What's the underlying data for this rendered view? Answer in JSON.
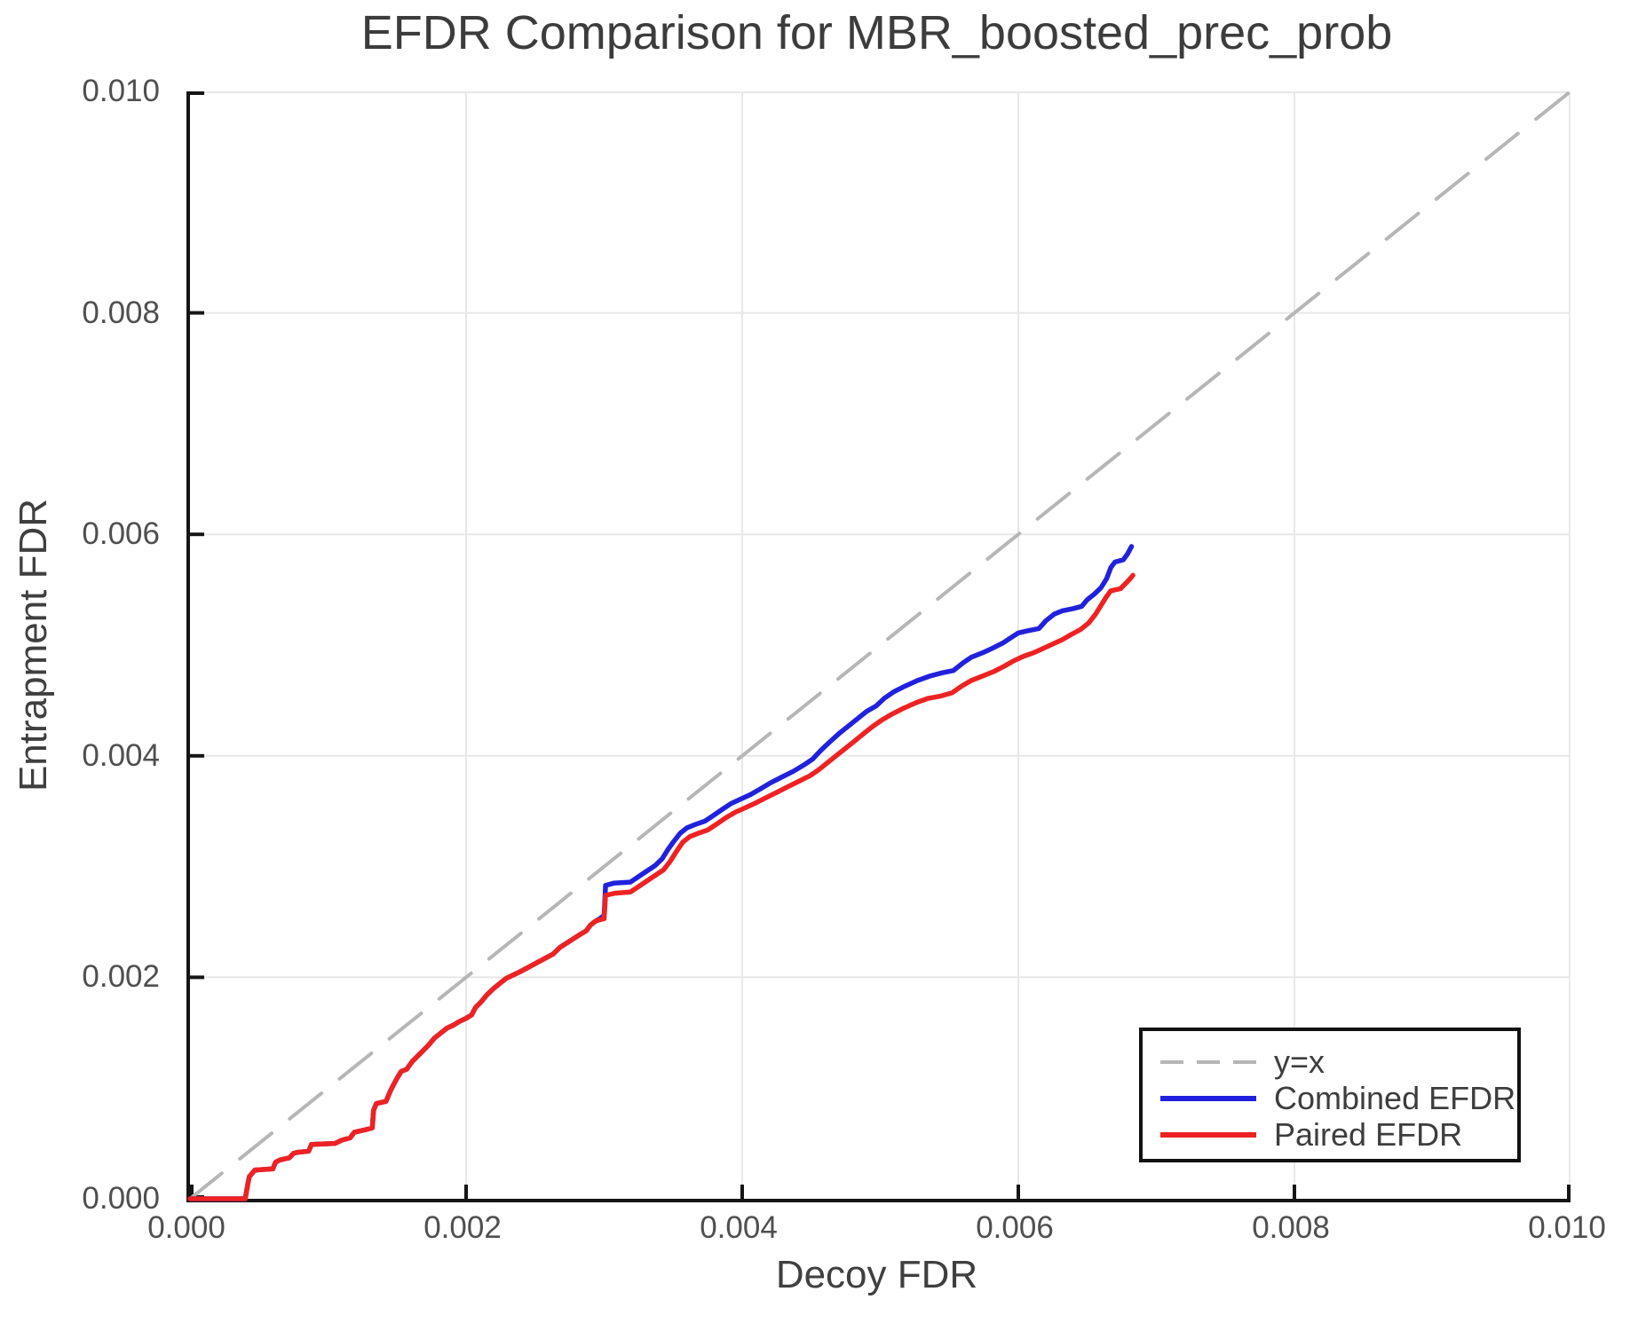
{
  "title": "EFDR Comparison for MBR_boosted_prec_prob",
  "axes": {
    "xlabel": "Decoy FDR",
    "ylabel": "Entrapment FDR",
    "xtick_labels": [
      "0.000",
      "0.002",
      "0.004",
      "0.006",
      "0.008",
      "0.010"
    ],
    "ytick_labels": [
      "0.000",
      "0.002",
      "0.004",
      "0.006",
      "0.008",
      "0.010"
    ]
  },
  "colors": {
    "identity_line": "#b6b6b6",
    "combined_efdr": "#2121dd",
    "paired_efdr": "#ee2222",
    "gridline": "#e8e8e8",
    "spine": "#151515",
    "text": "#3f3f3f"
  },
  "chart_data": {
    "type": "line",
    "title": "EFDR Comparison for MBR_boosted_prec_prob",
    "xlabel": "Decoy FDR",
    "ylabel": "Entrapment FDR",
    "xlim": [
      0.0,
      0.01
    ],
    "ylim": [
      0.0,
      0.01
    ],
    "xticks": [
      0.0,
      0.002,
      0.004,
      0.006,
      0.008,
      0.01
    ],
    "yticks": [
      0.0,
      0.002,
      0.004,
      0.006,
      0.008,
      0.01
    ],
    "grid": true,
    "legend_position": "lower right",
    "series": [
      {
        "id": "yx",
        "name": "y=x",
        "style": "dashed",
        "color": "#b6b6b6",
        "points": [
          [
            0.0,
            0.0
          ],
          [
            0.01,
            0.01
          ]
        ]
      },
      {
        "id": "combined",
        "name": "Combined EFDR",
        "style": "solid",
        "color": "#2121dd",
        "points": [
          [
            0.0,
            0.0
          ],
          [
            0.0004,
            0.0
          ],
          [
            0.00042,
            0.00014
          ],
          [
            0.00043,
            0.0002
          ],
          [
            0.00047,
            0.00026
          ],
          [
            0.0006,
            0.00027
          ],
          [
            0.00062,
            0.00033
          ],
          [
            0.00065,
            0.00035
          ],
          [
            0.00072,
            0.00037
          ],
          [
            0.00075,
            0.00041
          ],
          [
            0.00078,
            0.00042
          ],
          [
            0.00086,
            0.00043
          ],
          [
            0.00088,
            0.00049
          ],
          [
            0.00105,
            0.0005
          ],
          [
            0.0011,
            0.00053
          ],
          [
            0.00116,
            0.00055
          ],
          [
            0.00119,
            0.0006
          ],
          [
            0.00126,
            0.00062
          ],
          [
            0.00132,
            0.00064
          ],
          [
            0.00133,
            0.0008
          ],
          [
            0.00135,
            0.00086
          ],
          [
            0.00142,
            0.00088
          ],
          [
            0.00145,
            0.00097
          ],
          [
            0.00147,
            0.00102
          ],
          [
            0.0015,
            0.00109
          ],
          [
            0.00153,
            0.00115
          ],
          [
            0.00157,
            0.00117
          ],
          [
            0.00161,
            0.00124
          ],
          [
            0.00165,
            0.00129
          ],
          [
            0.00169,
            0.00134
          ],
          [
            0.00173,
            0.00139
          ],
          [
            0.00177,
            0.00145
          ],
          [
            0.00181,
            0.00149
          ],
          [
            0.00186,
            0.00154
          ],
          [
            0.00191,
            0.00157
          ],
          [
            0.00195,
            0.0016
          ],
          [
            0.002,
            0.00163
          ],
          [
            0.00204,
            0.00166
          ],
          [
            0.00207,
            0.00173
          ],
          [
            0.00211,
            0.00178
          ],
          [
            0.00215,
            0.00184
          ],
          [
            0.0022,
            0.0019
          ],
          [
            0.00224,
            0.00194
          ],
          [
            0.00229,
            0.00199
          ],
          [
            0.00234,
            0.00202
          ],
          [
            0.00239,
            0.00205
          ],
          [
            0.00245,
            0.00209
          ],
          [
            0.00251,
            0.00213
          ],
          [
            0.00257,
            0.00217
          ],
          [
            0.00263,
            0.00221
          ],
          [
            0.00268,
            0.00227
          ],
          [
            0.00273,
            0.00231
          ],
          [
            0.00278,
            0.00235
          ],
          [
            0.00283,
            0.00239
          ],
          [
            0.00287,
            0.00242
          ],
          [
            0.0029,
            0.00247
          ],
          [
            0.00294,
            0.00251
          ],
          [
            0.00297,
            0.00253
          ],
          [
            0.003,
            0.00256
          ],
          [
            0.00301,
            0.00283
          ],
          [
            0.00307,
            0.00285
          ],
          [
            0.00319,
            0.00286
          ],
          [
            0.00325,
            0.00291
          ],
          [
            0.00331,
            0.00296
          ],
          [
            0.00337,
            0.00301
          ],
          [
            0.00342,
            0.00307
          ],
          [
            0.00346,
            0.00315
          ],
          [
            0.0035,
            0.00322
          ],
          [
            0.00355,
            0.0033
          ],
          [
            0.0036,
            0.00335
          ],
          [
            0.00366,
            0.00338
          ],
          [
            0.00373,
            0.00341
          ],
          [
            0.00379,
            0.00346
          ],
          [
            0.00386,
            0.00352
          ],
          [
            0.00392,
            0.00357
          ],
          [
            0.00399,
            0.00361
          ],
          [
            0.00406,
            0.00365
          ],
          [
            0.00413,
            0.0037
          ],
          [
            0.00421,
            0.00376
          ],
          [
            0.00429,
            0.00381
          ],
          [
            0.00437,
            0.00386
          ],
          [
            0.00445,
            0.00392
          ],
          [
            0.00451,
            0.00397
          ],
          [
            0.00457,
            0.00405
          ],
          [
            0.00463,
            0.00412
          ],
          [
            0.0047,
            0.0042
          ],
          [
            0.00476,
            0.00426
          ],
          [
            0.00483,
            0.00433
          ],
          [
            0.0049,
            0.0044
          ],
          [
            0.00497,
            0.00445
          ],
          [
            0.00503,
            0.00452
          ],
          [
            0.0051,
            0.00458
          ],
          [
            0.00518,
            0.00463
          ],
          [
            0.00527,
            0.00468
          ],
          [
            0.00536,
            0.00472
          ],
          [
            0.00545,
            0.00475
          ],
          [
            0.00553,
            0.00477
          ],
          [
            0.0056,
            0.00484
          ],
          [
            0.00566,
            0.00489
          ],
          [
            0.00574,
            0.00493
          ],
          [
            0.00581,
            0.00497
          ],
          [
            0.00589,
            0.00502
          ],
          [
            0.00595,
            0.00507
          ],
          [
            0.006,
            0.00511
          ],
          [
            0.00607,
            0.00513
          ],
          [
            0.00615,
            0.00515
          ],
          [
            0.0062,
            0.00522
          ],
          [
            0.00626,
            0.00528
          ],
          [
            0.00632,
            0.00531
          ],
          [
            0.0064,
            0.00533
          ],
          [
            0.00646,
            0.00535
          ],
          [
            0.0065,
            0.00541
          ],
          [
            0.00655,
            0.00546
          ],
          [
            0.0066,
            0.00552
          ],
          [
            0.00664,
            0.0056
          ],
          [
            0.00667,
            0.0057
          ],
          [
            0.0067,
            0.00575
          ],
          [
            0.00676,
            0.00577
          ],
          [
            0.00679,
            0.00582
          ],
          [
            0.00682,
            0.00589
          ]
        ]
      },
      {
        "id": "paired",
        "name": "Paired EFDR",
        "style": "solid",
        "color": "#ee2222",
        "points": [
          [
            0.0,
            0.0
          ],
          [
            0.0004,
            0.0
          ],
          [
            0.00042,
            0.00014
          ],
          [
            0.00043,
            0.0002
          ],
          [
            0.00047,
            0.00026
          ],
          [
            0.0006,
            0.00027
          ],
          [
            0.00062,
            0.00033
          ],
          [
            0.00065,
            0.00035
          ],
          [
            0.00072,
            0.00037
          ],
          [
            0.00075,
            0.00041
          ],
          [
            0.00078,
            0.00042
          ],
          [
            0.00086,
            0.00043
          ],
          [
            0.00088,
            0.00049
          ],
          [
            0.00105,
            0.0005
          ],
          [
            0.0011,
            0.00053
          ],
          [
            0.00116,
            0.00055
          ],
          [
            0.00119,
            0.0006
          ],
          [
            0.00126,
            0.00062
          ],
          [
            0.00132,
            0.00064
          ],
          [
            0.00133,
            0.0008
          ],
          [
            0.00135,
            0.00086
          ],
          [
            0.00142,
            0.00088
          ],
          [
            0.00145,
            0.00097
          ],
          [
            0.00147,
            0.00102
          ],
          [
            0.0015,
            0.00109
          ],
          [
            0.00153,
            0.00115
          ],
          [
            0.00157,
            0.00117
          ],
          [
            0.00161,
            0.00124
          ],
          [
            0.00165,
            0.00129
          ],
          [
            0.00169,
            0.00134
          ],
          [
            0.00173,
            0.00139
          ],
          [
            0.00177,
            0.00145
          ],
          [
            0.00181,
            0.00149
          ],
          [
            0.00186,
            0.00154
          ],
          [
            0.00191,
            0.00157
          ],
          [
            0.00195,
            0.0016
          ],
          [
            0.002,
            0.00163
          ],
          [
            0.00204,
            0.00166
          ],
          [
            0.00207,
            0.00173
          ],
          [
            0.00211,
            0.00178
          ],
          [
            0.00215,
            0.00184
          ],
          [
            0.0022,
            0.0019
          ],
          [
            0.00224,
            0.00194
          ],
          [
            0.00229,
            0.00199
          ],
          [
            0.00234,
            0.00202
          ],
          [
            0.00239,
            0.00205
          ],
          [
            0.00245,
            0.00209
          ],
          [
            0.00251,
            0.00213
          ],
          [
            0.00257,
            0.00217
          ],
          [
            0.00263,
            0.00221
          ],
          [
            0.00268,
            0.00227
          ],
          [
            0.00273,
            0.00231
          ],
          [
            0.00278,
            0.00235
          ],
          [
            0.00283,
            0.00239
          ],
          [
            0.00287,
            0.00242
          ],
          [
            0.0029,
            0.00247
          ],
          [
            0.00294,
            0.00251
          ],
          [
            0.00297,
            0.00252
          ],
          [
            0.003,
            0.00253
          ],
          [
            0.00301,
            0.00274
          ],
          [
            0.00308,
            0.00276
          ],
          [
            0.00319,
            0.00277
          ],
          [
            0.00325,
            0.00282
          ],
          [
            0.00331,
            0.00287
          ],
          [
            0.00337,
            0.00292
          ],
          [
            0.00343,
            0.00297
          ],
          [
            0.00348,
            0.00305
          ],
          [
            0.00352,
            0.00313
          ],
          [
            0.00357,
            0.00322
          ],
          [
            0.00362,
            0.00327
          ],
          [
            0.00368,
            0.0033
          ],
          [
            0.00375,
            0.00333
          ],
          [
            0.00381,
            0.00338
          ],
          [
            0.00388,
            0.00344
          ],
          [
            0.00395,
            0.00349
          ],
          [
            0.00402,
            0.00353
          ],
          [
            0.00409,
            0.00357
          ],
          [
            0.00417,
            0.00362
          ],
          [
            0.00425,
            0.00367
          ],
          [
            0.00433,
            0.00372
          ],
          [
            0.00441,
            0.00377
          ],
          [
            0.00449,
            0.00382
          ],
          [
            0.00455,
            0.00387
          ],
          [
            0.00461,
            0.00393
          ],
          [
            0.00467,
            0.00399
          ],
          [
            0.00474,
            0.00406
          ],
          [
            0.00481,
            0.00413
          ],
          [
            0.00488,
            0.0042
          ],
          [
            0.00495,
            0.00427
          ],
          [
            0.00502,
            0.00433
          ],
          [
            0.00509,
            0.00438
          ],
          [
            0.00517,
            0.00443
          ],
          [
            0.00526,
            0.00448
          ],
          [
            0.00535,
            0.00452
          ],
          [
            0.00544,
            0.00454
          ],
          [
            0.00552,
            0.00457
          ],
          [
            0.00559,
            0.00463
          ],
          [
            0.00566,
            0.00468
          ],
          [
            0.00574,
            0.00472
          ],
          [
            0.00582,
            0.00476
          ],
          [
            0.0059,
            0.00481
          ],
          [
            0.00597,
            0.00486
          ],
          [
            0.00604,
            0.0049
          ],
          [
            0.00611,
            0.00493
          ],
          [
            0.00618,
            0.00497
          ],
          [
            0.00625,
            0.00501
          ],
          [
            0.00632,
            0.00505
          ],
          [
            0.00639,
            0.0051
          ],
          [
            0.00645,
            0.00514
          ],
          [
            0.00651,
            0.0052
          ],
          [
            0.00656,
            0.00528
          ],
          [
            0.0066,
            0.00536
          ],
          [
            0.00664,
            0.00544
          ],
          [
            0.00667,
            0.00549
          ],
          [
            0.00674,
            0.00551
          ],
          [
            0.00678,
            0.00556
          ],
          [
            0.00681,
            0.0056
          ],
          [
            0.00683,
            0.00563
          ]
        ]
      }
    ]
  }
}
